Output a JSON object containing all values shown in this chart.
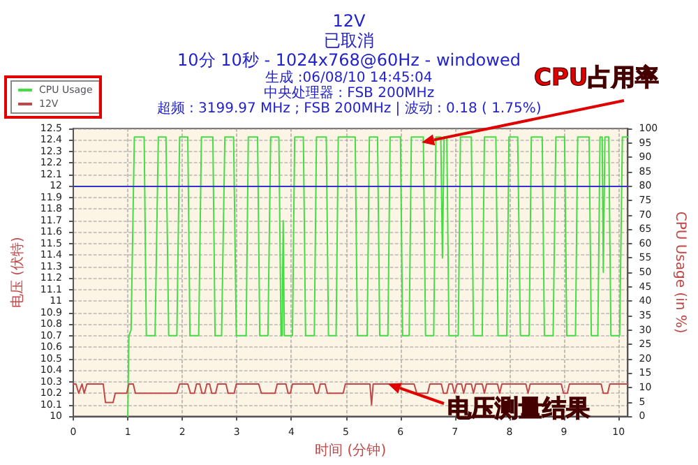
{
  "chart_data": {
    "type": "line",
    "title": "12V",
    "subtitle": "已取消\n10分 10秒 - 1024x768@60Hz - windowed\n生成 :06/08/10 14:45:04\n中央处理器 : FSB 200MHz\n超频 : 3199.97 MHz ; FSB 200MHz | 波动 : 0.18 ( 1.75%)",
    "xlabel": "时间 (分钟)",
    "ylabel": "电压 (伏特)",
    "y2label": "CPU Usage (in %)",
    "annotations": [
      {
        "text": "CPU占用率",
        "x": 6.4,
        "y": 12.38
      },
      {
        "text": "电压测量结果",
        "x": 5.78,
        "y": 10.28
      }
    ],
    "series": [
      {
        "name": "CPU Usage",
        "color": "#44dd44",
        "axis": "y2",
        "x": [
          1,
          1.02,
          1.06,
          1.12,
          1.3,
          1.34,
          1.5,
          1.56,
          1.7,
          1.75,
          1.9,
          1.95,
          2.1,
          2.14,
          2.3,
          2.35,
          2.56,
          2.6,
          2.72,
          2.78,
          2.94,
          2.99,
          3.17,
          3.21,
          3.38,
          3.42,
          3.57,
          3.62,
          3.77,
          3.81,
          3.83,
          3.85,
          3.87,
          4.02,
          4.06,
          4.22,
          4.26,
          4.42,
          4.46,
          4.64,
          4.68,
          4.82,
          4.86,
          5.17,
          5.21,
          5.39,
          5.43,
          5.58,
          5.62,
          5.77,
          5.81,
          6,
          6.04,
          6.16,
          6.2,
          6.42,
          6.46,
          6.61,
          6.65,
          6.74,
          6.77,
          6.8,
          6.85,
          6.89,
          7.06,
          7.1,
          7.3,
          7.34,
          7.5,
          7.54,
          7.75,
          7.79,
          7.95,
          7.99,
          8.15,
          8.2,
          8.36,
          8.4,
          8.6,
          8.64,
          8.8,
          8.85,
          9.01,
          9.05,
          9.21,
          9.25,
          9.46,
          9.5,
          9.62,
          9.66,
          9.7,
          9.72,
          9.75,
          9.82,
          9.86,
          10.02,
          10.07,
          10.17
        ],
        "values": [
          0,
          28,
          30,
          97,
          97,
          28,
          28,
          97,
          97,
          28,
          28,
          97,
          97,
          28,
          28,
          97,
          97,
          28,
          28,
          97,
          97,
          28,
          28,
          97,
          97,
          28,
          28,
          97,
          97,
          28,
          28,
          68,
          28,
          28,
          97,
          97,
          28,
          28,
          97,
          97,
          28,
          28,
          97,
          97,
          28,
          28,
          97,
          97,
          28,
          28,
          97,
          97,
          28,
          28,
          97,
          97,
          28,
          28,
          97,
          97,
          55,
          97,
          97,
          28,
          28,
          97,
          97,
          28,
          28,
          97,
          97,
          28,
          28,
          97,
          97,
          28,
          28,
          97,
          97,
          28,
          28,
          97,
          97,
          28,
          28,
          97,
          97,
          28,
          28,
          97,
          97,
          50,
          97,
          97,
          28,
          28,
          97,
          97
        ]
      },
      {
        "name": "12V",
        "color": "#c04848",
        "x": [
          0,
          0.05,
          0.1,
          0.16,
          0.2,
          0.25,
          0.55,
          0.59,
          0.73,
          0.77,
          0.98,
          1.02,
          1.1,
          1.14,
          1.9,
          1.95,
          2.1,
          2.15,
          2.22,
          2.26,
          2.32,
          2.36,
          2.41,
          2.45,
          2.5,
          2.54,
          2.61,
          2.65,
          2.8,
          2.84,
          2.95,
          2.99,
          3.4,
          3.45,
          3.7,
          3.74,
          3.9,
          3.94,
          3.98,
          4.02,
          4.4,
          4.44,
          4.49,
          4.53,
          4.62,
          4.66,
          4.95,
          4.99,
          5.44,
          5.47,
          5.5,
          6.25,
          6.3,
          6.5,
          6.54,
          6.75,
          6.79,
          6.85,
          6.89,
          6.95,
          6.99,
          7.04,
          7.12,
          7.16,
          7.2,
          7.3,
          7.34,
          7.38,
          7.5,
          7.54,
          7.58,
          7.78,
          7.82,
          7.86,
          8.3,
          8.34,
          8.38,
          8.95,
          8.99,
          9.06,
          9.1,
          9.68,
          9.72,
          9.8,
          9.84,
          10.17
        ],
        "values": [
          10.28,
          10.28,
          10.2,
          10.28,
          10.2,
          10.28,
          10.28,
          10.12,
          10.12,
          10.2,
          10.2,
          10.28,
          10.28,
          10.2,
          10.2,
          10.28,
          10.28,
          10.2,
          10.2,
          10.28,
          10.28,
          10.2,
          10.2,
          10.28,
          10.28,
          10.2,
          10.2,
          10.28,
          10.28,
          10.2,
          10.2,
          10.28,
          10.28,
          10.2,
          10.2,
          10.28,
          10.28,
          10.2,
          10.2,
          10.28,
          10.28,
          10.2,
          10.2,
          10.28,
          10.28,
          10.2,
          10.2,
          10.28,
          10.28,
          10.1,
          10.28,
          10.28,
          10.2,
          10.2,
          10.28,
          10.28,
          10.2,
          10.2,
          10.28,
          10.28,
          10.2,
          10.28,
          10.28,
          10.2,
          10.28,
          10.28,
          10.2,
          10.28,
          10.28,
          10.2,
          10.28,
          10.28,
          10.2,
          10.28,
          10.28,
          10.2,
          10.28,
          10.28,
          10.2,
          10.2,
          10.28,
          10.28,
          10.2,
          10.2,
          10.28,
          10.28
        ]
      }
    ],
    "ref_lines": [
      {
        "axis": "y",
        "value": 12,
        "color": "#3333cc"
      }
    ],
    "xlim": [
      0,
      10.17
    ],
    "xticks": [
      0,
      1,
      2,
      3,
      4,
      5,
      6,
      7,
      8,
      9,
      10
    ],
    "ylim": [
      10,
      12.5
    ],
    "yticks": [
      10,
      10.1,
      10.2,
      10.3,
      10.4,
      10.5,
      10.6,
      10.7,
      10.8,
      10.9,
      11,
      11.1,
      11.2,
      11.3,
      11.4,
      11.5,
      11.6,
      11.7,
      11.8,
      11.9,
      12,
      12.1,
      12.2,
      12.3,
      12.4,
      12.5
    ],
    "y2lim": [
      0,
      100
    ],
    "y2ticks": [
      0,
      5,
      10,
      15,
      20,
      25,
      30,
      35,
      40,
      45,
      50,
      55,
      60,
      65,
      70,
      75,
      80,
      85,
      90,
      95,
      100
    ],
    "grid": true,
    "legend": "top left",
    "marker": "none",
    "line_style": "solid"
  }
}
